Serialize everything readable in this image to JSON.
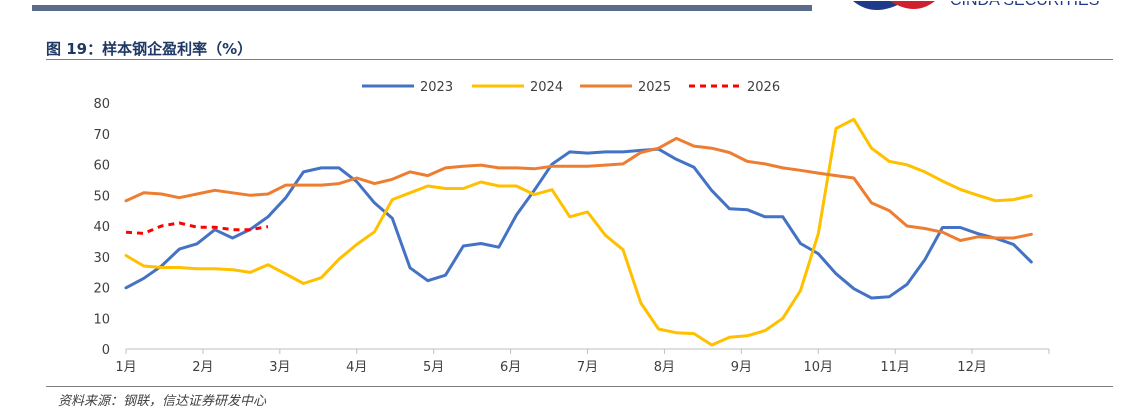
{
  "figure_title": "图 19：样本钢企盈利率（%）",
  "source_note": "资料来源：钢联，信达证券研发中心",
  "logo_text": "CINDA SECURITIES",
  "colors": {
    "2023": "#4472c4",
    "2024": "#ffc000",
    "2025": "#ed7d31",
    "2026": "#ff0000",
    "title": "#1f3864",
    "topbar": "#5b6b8a"
  },
  "chart_data": {
    "type": "line",
    "title": "",
    "xlabel": "",
    "ylabel": "",
    "ylim": [
      0,
      80
    ],
    "yticks": [
      0,
      10,
      20,
      30,
      40,
      50,
      60,
      70,
      80
    ],
    "xlim": [
      1,
      53
    ],
    "xtick_labels": [
      "1月",
      "2月",
      "3月",
      "4月",
      "5月",
      "6月",
      "7月",
      "8月",
      "9月",
      "10月",
      "11月",
      "12月"
    ],
    "legend_position": "top-center",
    "grid": false,
    "series": [
      {
        "name": "2023",
        "style": "solid",
        "color": "#4472c4",
        "values": [
          19.9,
          23.0,
          27.0,
          32.5,
          34.2,
          38.8,
          36.1,
          38.9,
          43.0,
          49.2,
          57.6,
          58.9,
          58.9,
          54.4,
          47.5,
          42.5,
          26.4,
          22.2,
          24.0,
          33.5,
          34.3,
          33.1,
          43.6,
          51.6,
          60.1,
          64.1,
          63.7,
          64.1,
          64.1,
          64.6,
          65.0,
          61.7,
          59.1,
          51.5,
          45.6,
          45.3,
          43.0,
          43.0,
          34.3,
          31.0,
          24.5,
          19.6,
          16.6,
          17.0,
          21.0,
          29.0,
          39.5,
          39.5,
          37.5,
          36.0,
          34.0,
          28.3
        ]
      },
      {
        "name": "2024",
        "style": "solid",
        "color": "#ffc000",
        "values": [
          30.4,
          27.0,
          26.5,
          26.5,
          26.1,
          26.1,
          25.8,
          24.9,
          27.4,
          24.4,
          21.3,
          23.2,
          29.2,
          34.0,
          38.1,
          48.6,
          50.8,
          53.0,
          52.2,
          52.2,
          54.3,
          53.0,
          53.0,
          50.2,
          51.8,
          43.0,
          44.6,
          37.0,
          32.3,
          15.0,
          6.5,
          5.3,
          5.0,
          1.3,
          3.8,
          4.3,
          6.0,
          10.0,
          19.0,
          37.5,
          71.7,
          74.7,
          65.3,
          61.0,
          59.9,
          57.6,
          54.6,
          51.9,
          50.0,
          48.2,
          48.6,
          49.9
        ]
      },
      {
        "name": "2025",
        "style": "solid",
        "color": "#ed7d31",
        "values": [
          48.2,
          50.8,
          50.4,
          49.2,
          50.4,
          51.6,
          50.8,
          50.0,
          50.4,
          53.3,
          53.3,
          53.3,
          53.8,
          55.6,
          53.8,
          55.2,
          57.6,
          56.4,
          58.9,
          59.4,
          59.8,
          58.9,
          58.9,
          58.6,
          59.4,
          59.4,
          59.4,
          59.8,
          60.2,
          63.9,
          65.3,
          68.5,
          66.0,
          65.3,
          63.9,
          61.0,
          60.2,
          58.9,
          58.1,
          57.2,
          56.4,
          55.6,
          47.5,
          45.0,
          40.0,
          39.2,
          38.0,
          35.3,
          36.5,
          36.1,
          36.1,
          37.3
        ]
      },
      {
        "name": "2026",
        "style": "dashed",
        "color": "#ff0000",
        "values": [
          38.0,
          37.6,
          40.0,
          41.0,
          39.6,
          39.6,
          38.8,
          38.8,
          39.8
        ]
      }
    ]
  }
}
